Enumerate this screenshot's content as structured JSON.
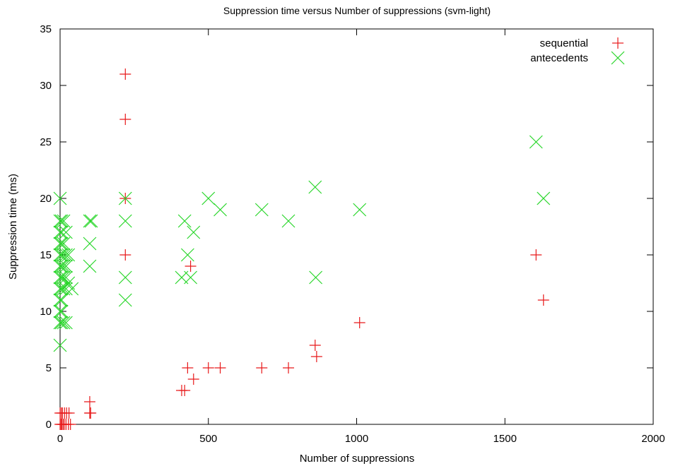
{
  "chart_data": {
    "type": "scatter",
    "title": "Suppression time versus Number of suppressions (svm-light)",
    "xlabel": "Number of suppressions",
    "ylabel": "Suppression time (ms)",
    "xlim": [
      0,
      2000
    ],
    "ylim": [
      0,
      35
    ],
    "xticks": [
      0,
      500,
      1000,
      1500,
      2000
    ],
    "yticks": [
      0,
      5,
      10,
      15,
      20,
      25,
      30,
      35
    ],
    "grid": false,
    "legend_position": "top-right",
    "series": [
      {
        "name": "sequential",
        "marker": "plus",
        "color": "#e8191a",
        "points": [
          [
            0,
            0
          ],
          [
            3,
            0
          ],
          [
            6,
            0
          ],
          [
            10,
            0
          ],
          [
            14,
            0
          ],
          [
            20,
            0
          ],
          [
            28,
            0
          ],
          [
            35,
            0
          ],
          [
            0,
            1
          ],
          [
            4,
            1
          ],
          [
            8,
            1
          ],
          [
            15,
            1
          ],
          [
            22,
            1
          ],
          [
            30,
            1
          ],
          [
            100,
            1
          ],
          [
            103,
            1
          ],
          [
            100,
            2
          ],
          [
            220,
            31
          ],
          [
            220,
            27
          ],
          [
            220,
            20
          ],
          [
            220,
            15
          ],
          [
            410,
            3
          ],
          [
            420,
            3
          ],
          [
            430,
            5
          ],
          [
            440,
            14
          ],
          [
            450,
            4
          ],
          [
            500,
            5
          ],
          [
            540,
            5
          ],
          [
            680,
            5
          ],
          [
            770,
            5
          ],
          [
            860,
            7
          ],
          [
            865,
            6
          ],
          [
            1010,
            9
          ],
          [
            1605,
            15
          ],
          [
            1630,
            11
          ]
        ]
      },
      {
        "name": "antecedents",
        "marker": "x",
        "color": "#28d62a",
        "points": [
          [
            0,
            20
          ],
          [
            0,
            7
          ],
          [
            0,
            9
          ],
          [
            0,
            10
          ],
          [
            0,
            11
          ],
          [
            0,
            12
          ],
          [
            0,
            13
          ],
          [
            0,
            14
          ],
          [
            0,
            15
          ],
          [
            0,
            16
          ],
          [
            0,
            17
          ],
          [
            0,
            18
          ],
          [
            5,
            9
          ],
          [
            5,
            10
          ],
          [
            5,
            11
          ],
          [
            5,
            12
          ],
          [
            5,
            13
          ],
          [
            5,
            14
          ],
          [
            5,
            15
          ],
          [
            5,
            16
          ],
          [
            5,
            17
          ],
          [
            5,
            18
          ],
          [
            12,
            9
          ],
          [
            12,
            12
          ],
          [
            12,
            13
          ],
          [
            12,
            14
          ],
          [
            12,
            15
          ],
          [
            12,
            16
          ],
          [
            12,
            18
          ],
          [
            20,
            9
          ],
          [
            20,
            12
          ],
          [
            20,
            13
          ],
          [
            20,
            14
          ],
          [
            20,
            15
          ],
          [
            20,
            17
          ],
          [
            28,
            12.5
          ],
          [
            28,
            15
          ],
          [
            40,
            12
          ],
          [
            100,
            18
          ],
          [
            100,
            16
          ],
          [
            100,
            14
          ],
          [
            105,
            18
          ],
          [
            220,
            20
          ],
          [
            220,
            18
          ],
          [
            220,
            13
          ],
          [
            220,
            11
          ],
          [
            410,
            13
          ],
          [
            420,
            18
          ],
          [
            430,
            15
          ],
          [
            440,
            13
          ],
          [
            450,
            17
          ],
          [
            500,
            20
          ],
          [
            540,
            19
          ],
          [
            680,
            19
          ],
          [
            770,
            18
          ],
          [
            860,
            21
          ],
          [
            862,
            13
          ],
          [
            1010,
            19
          ],
          [
            1605,
            25
          ],
          [
            1630,
            20
          ]
        ]
      }
    ]
  }
}
